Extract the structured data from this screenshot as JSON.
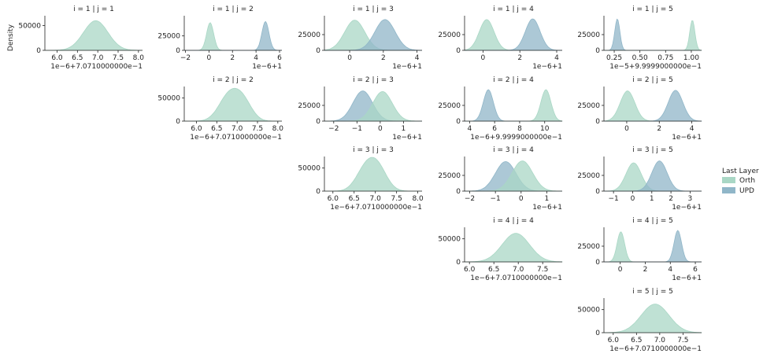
{
  "legend": {
    "title": "Last Layer",
    "entries": [
      {
        "label": "Orth",
        "color": "#a9d7c5"
      },
      {
        "label": "UPD",
        "color": "#90b6c8"
      }
    ]
  },
  "y_axis_label": "Density",
  "chart_data": [
    {
      "type": "area",
      "title": "i = 1 | j = 1",
      "offset": "1e−6+7.0710000000e−1",
      "xticks": [
        6.0,
        6.5,
        7.0,
        7.5,
        8.0
      ],
      "xtick_labels": [
        "6.0",
        "6.5",
        "7.0",
        "7.5",
        "8.0"
      ],
      "xlim": [
        5.7,
        8.1
      ],
      "yticks": [
        0,
        50000
      ],
      "ytick_labels": [
        "0",
        "50000"
      ],
      "ylim": [
        0,
        70000
      ],
      "series": [
        {
          "name": "Orth",
          "peaks": [
            {
              "mu": 6.95,
              "sd": 0.3,
              "h": 60000
            }
          ]
        }
      ]
    },
    {
      "type": "area",
      "title": "i = 1 | j = 2",
      "offset": "1e−6+1",
      "xticks": [
        -2,
        0,
        2,
        4,
        6
      ],
      "xtick_labels": [
        "−2",
        "0",
        "2",
        "4",
        "6"
      ],
      "xlim": [
        -2.1,
        6.2
      ],
      "yticks": [
        0,
        25000
      ],
      "ytick_labels": [
        "0",
        "25000"
      ],
      "ylim": [
        0,
        60000
      ],
      "series": [
        {
          "name": "Orth",
          "peaks": [
            {
              "mu": 0.1,
              "sd": 0.3,
              "h": 48000
            }
          ]
        },
        {
          "name": "UPD",
          "peaks": [
            {
              "mu": 4.8,
              "sd": 0.3,
              "h": 50000
            }
          ]
        }
      ]
    },
    {
      "type": "area",
      "title": "i = 1 | j = 3",
      "offset": "1e−6+1",
      "xticks": [
        0,
        2,
        4
      ],
      "xtick_labels": [
        "0",
        "2",
        "4"
      ],
      "xlim": [
        -1.5,
        4.3
      ],
      "yticks": [
        0,
        25000
      ],
      "ytick_labels": [
        "0",
        "25000"
      ],
      "ylim": [
        0,
        55000
      ],
      "series": [
        {
          "name": "Orth",
          "peaks": [
            {
              "mu": 0.3,
              "sd": 0.6,
              "h": 48000
            }
          ]
        },
        {
          "name": "UPD",
          "peaks": [
            {
              "mu": 2.1,
              "sd": 0.6,
              "h": 49000
            }
          ]
        }
      ]
    },
    {
      "type": "area",
      "title": "i = 1 | j = 4",
      "offset": "1e−6+1",
      "xticks": [
        0,
        2,
        4
      ],
      "xtick_labels": [
        "0",
        "2",
        "4"
      ],
      "xlim": [
        -1.0,
        4.3
      ],
      "yticks": [
        0,
        25000
      ],
      "ytick_labels": [
        "0",
        "25000"
      ],
      "ylim": [
        0,
        55000
      ],
      "series": [
        {
          "name": "Orth",
          "peaks": [
            {
              "mu": 0.2,
              "sd": 0.4,
              "h": 49000
            }
          ]
        },
        {
          "name": "UPD",
          "peaks": [
            {
              "mu": 2.7,
              "sd": 0.4,
              "h": 50000
            }
          ]
        }
      ]
    },
    {
      "type": "area",
      "title": "i = 1 | j = 5",
      "offset": "1e−5+9.9999000000e−1",
      "xticks": [
        0.25,
        0.5,
        0.75,
        1.0
      ],
      "xtick_labels": [
        "0.25",
        "0.50",
        "0.75",
        "1.00"
      ],
      "xlim": [
        0.15,
        1.1
      ],
      "yticks": [
        0,
        25000
      ],
      "ytick_labels": [
        "0",
        "25000"
      ],
      "ylim": [
        0,
        55000
      ],
      "series": [
        {
          "name": "UPD",
          "peaks": [
            {
              "mu": 0.28,
              "sd": 0.025,
              "h": 50000
            }
          ]
        },
        {
          "name": "Orth",
          "peaks": [
            {
              "mu": 1.01,
              "sd": 0.025,
              "h": 48000
            }
          ]
        }
      ]
    },
    {
      "type": "area",
      "title": "i = 2 | j = 2",
      "offset": "1e−6+7.0710000000e−1",
      "xticks": [
        6.0,
        6.5,
        7.0,
        7.5,
        8.0
      ],
      "xtick_labels": [
        "6.0",
        "6.5",
        "7.0",
        "7.5",
        "8.0"
      ],
      "xlim": [
        5.7,
        8.1
      ],
      "yticks": [
        0,
        50000
      ],
      "ytick_labels": [
        "0",
        "50000"
      ],
      "ylim": [
        0,
        75000
      ],
      "series": [
        {
          "name": "Orth",
          "peaks": [
            {
              "mu": 6.8,
              "sd": 0.25,
              "h": 55000
            },
            {
              "mu": 7.15,
              "sd": 0.22,
              "h": 38000
            }
          ]
        }
      ]
    },
    {
      "type": "area",
      "title": "i = 2 | j = 3",
      "offset": "1e−6+1",
      "xticks": [
        -2,
        -1,
        0,
        1
      ],
      "xtick_labels": [
        "−2",
        "−1",
        "0",
        "1"
      ],
      "xlim": [
        -2.4,
        1.8
      ],
      "yticks": [
        0,
        25000
      ],
      "ytick_labels": [
        "0",
        "25000"
      ],
      "ylim": [
        0,
        55000
      ],
      "series": [
        {
          "name": "UPD",
          "peaks": [
            {
              "mu": -0.75,
              "sd": 0.42,
              "h": 48000
            }
          ]
        },
        {
          "name": "Orth",
          "peaks": [
            {
              "mu": 0.1,
              "sd": 0.42,
              "h": 47000
            }
          ]
        }
      ]
    },
    {
      "type": "area",
      "title": "i = 2 | j = 4",
      "offset": "1e−6+9.9999000000e−1",
      "xticks": [
        4,
        6,
        8,
        10
      ],
      "xtick_labels": [
        "4",
        "6",
        "8",
        "10"
      ],
      "xlim": [
        3.6,
        11.4
      ],
      "yticks": [
        0,
        25000
      ],
      "ytick_labels": [
        "0",
        "25000"
      ],
      "ylim": [
        0,
        55000
      ],
      "series": [
        {
          "name": "UPD",
          "peaks": [
            {
              "mu": 5.5,
              "sd": 0.4,
              "h": 50000
            }
          ]
        },
        {
          "name": "Orth",
          "peaks": [
            {
              "mu": 10.1,
              "sd": 0.4,
              "h": 50000
            }
          ]
        }
      ]
    },
    {
      "type": "area",
      "title": "i = 2 | j = 5",
      "offset": "1e−6+1",
      "xticks": [
        0,
        2,
        4
      ],
      "xtick_labels": [
        "0",
        "2",
        "4"
      ],
      "xlim": [
        -1.4,
        4.6
      ],
      "yticks": [
        0,
        25000
      ],
      "ytick_labels": [
        "0",
        "25000"
      ],
      "ylim": [
        0,
        55000
      ],
      "series": [
        {
          "name": "Orth",
          "peaks": [
            {
              "mu": 0.05,
              "sd": 0.45,
              "h": 48000
            }
          ]
        },
        {
          "name": "UPD",
          "peaks": [
            {
              "mu": 3.0,
              "sd": 0.45,
              "h": 49000
            }
          ]
        }
      ]
    },
    {
      "type": "area",
      "title": "i = 3 | j = 3",
      "offset": "1e−6+7.0710000000e−1",
      "xticks": [
        6.0,
        6.5,
        7.0,
        7.5,
        8.0
      ],
      "xtick_labels": [
        "6.0",
        "6.5",
        "7.0",
        "7.5",
        "8.0"
      ],
      "xlim": [
        5.8,
        8.1
      ],
      "yticks": [
        0,
        50000
      ],
      "ytick_labels": [
        "0",
        "50000"
      ],
      "ylim": [
        0,
        75000
      ],
      "series": [
        {
          "name": "Orth",
          "peaks": [
            {
              "mu": 6.75,
              "sd": 0.22,
              "h": 42000
            },
            {
              "mu": 7.05,
              "sd": 0.22,
              "h": 50000
            }
          ]
        }
      ]
    },
    {
      "type": "area",
      "title": "i = 3 | j = 4",
      "offset": "1e−6+1",
      "xticks": [
        -2,
        -1,
        0,
        1
      ],
      "xtick_labels": [
        "−2",
        "−1",
        "0",
        "1"
      ],
      "xlim": [
        -2.2,
        1.6
      ],
      "yticks": [
        0,
        25000
      ],
      "ytick_labels": [
        "0",
        "25000"
      ],
      "ylim": [
        0,
        55000
      ],
      "series": [
        {
          "name": "UPD",
          "peaks": [
            {
              "mu": -0.6,
              "sd": 0.4,
              "h": 47000
            }
          ]
        },
        {
          "name": "Orth",
          "peaks": [
            {
              "mu": 0.05,
              "sd": 0.4,
              "h": 48000
            }
          ]
        }
      ]
    },
    {
      "type": "area",
      "title": "i = 3 | j = 5",
      "offset": "1e−6+1",
      "xticks": [
        -1,
        0,
        1,
        2,
        3
      ],
      "xtick_labels": [
        "−1",
        "0",
        "1",
        "2",
        "3"
      ],
      "xlim": [
        -1.5,
        3.6
      ],
      "yticks": [
        0,
        25000
      ],
      "ytick_labels": [
        "0",
        "25000"
      ],
      "ylim": [
        0,
        55000
      ],
      "series": [
        {
          "name": "Orth",
          "peaks": [
            {
              "mu": 0.05,
              "sd": 0.4,
              "h": 45000
            }
          ]
        },
        {
          "name": "UPD",
          "peaks": [
            {
              "mu": 1.4,
              "sd": 0.4,
              "h": 48000
            }
          ]
        }
      ]
    },
    {
      "type": "area",
      "title": "i = 4 | j = 4",
      "offset": "1e−6+7.0710000000e−1",
      "xticks": [
        6.0,
        6.5,
        7.0,
        7.5
      ],
      "xtick_labels": [
        "6.0",
        "6.5",
        "7.0",
        "7.5"
      ],
      "xlim": [
        5.9,
        7.9
      ],
      "yticks": [
        0,
        50000
      ],
      "ytick_labels": [
        "0",
        "50000"
      ],
      "ylim": [
        0,
        75000
      ],
      "series": [
        {
          "name": "Orth",
          "peaks": [
            {
              "mu": 6.95,
              "sd": 0.28,
              "h": 62000
            }
          ]
        }
      ]
    },
    {
      "type": "area",
      "title": "i = 4 | j = 5",
      "offset": "1e−6+1",
      "xticks": [
        0,
        2,
        4,
        6
      ],
      "xtick_labels": [
        "0",
        "2",
        "4",
        "6"
      ],
      "xlim": [
        -1.3,
        6.5
      ],
      "yticks": [
        0,
        25000
      ],
      "ytick_labels": [
        "0",
        "25000"
      ],
      "ylim": [
        0,
        55000
      ],
      "series": [
        {
          "name": "Orth",
          "peaks": [
            {
              "mu": 0.05,
              "sd": 0.3,
              "h": 48000
            }
          ]
        },
        {
          "name": "UPD",
          "peaks": [
            {
              "mu": 4.6,
              "sd": 0.3,
              "h": 50000
            }
          ]
        }
      ]
    },
    {
      "type": "area",
      "title": "i = 5 | j = 5",
      "offset": "1e−6+7.0710000000e−1",
      "xticks": [
        6.0,
        6.5,
        7.0,
        7.5
      ],
      "xtick_labels": [
        "6.0",
        "6.5",
        "7.0",
        "7.5"
      ],
      "xlim": [
        5.8,
        7.9
      ],
      "yticks": [
        0,
        50000
      ],
      "ytick_labels": [
        "0",
        "50000"
      ],
      "ylim": [
        0,
        75000
      ],
      "series": [
        {
          "name": "Orth",
          "peaks": [
            {
              "mu": 6.9,
              "sd": 0.3,
              "h": 62000
            }
          ]
        }
      ]
    }
  ]
}
